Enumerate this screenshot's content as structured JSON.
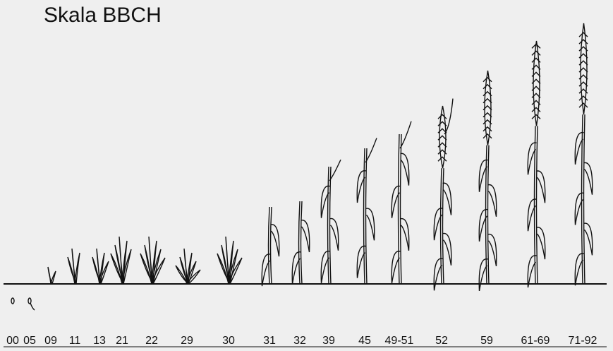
{
  "title": "Skala BBCH",
  "stages": [
    "00",
    "05",
    "09",
    "11",
    "13",
    "21",
    "22",
    "29",
    "30",
    "31",
    "32",
    "39",
    "45",
    "49-51",
    "52",
    "59",
    "61-69",
    "71-92"
  ]
}
